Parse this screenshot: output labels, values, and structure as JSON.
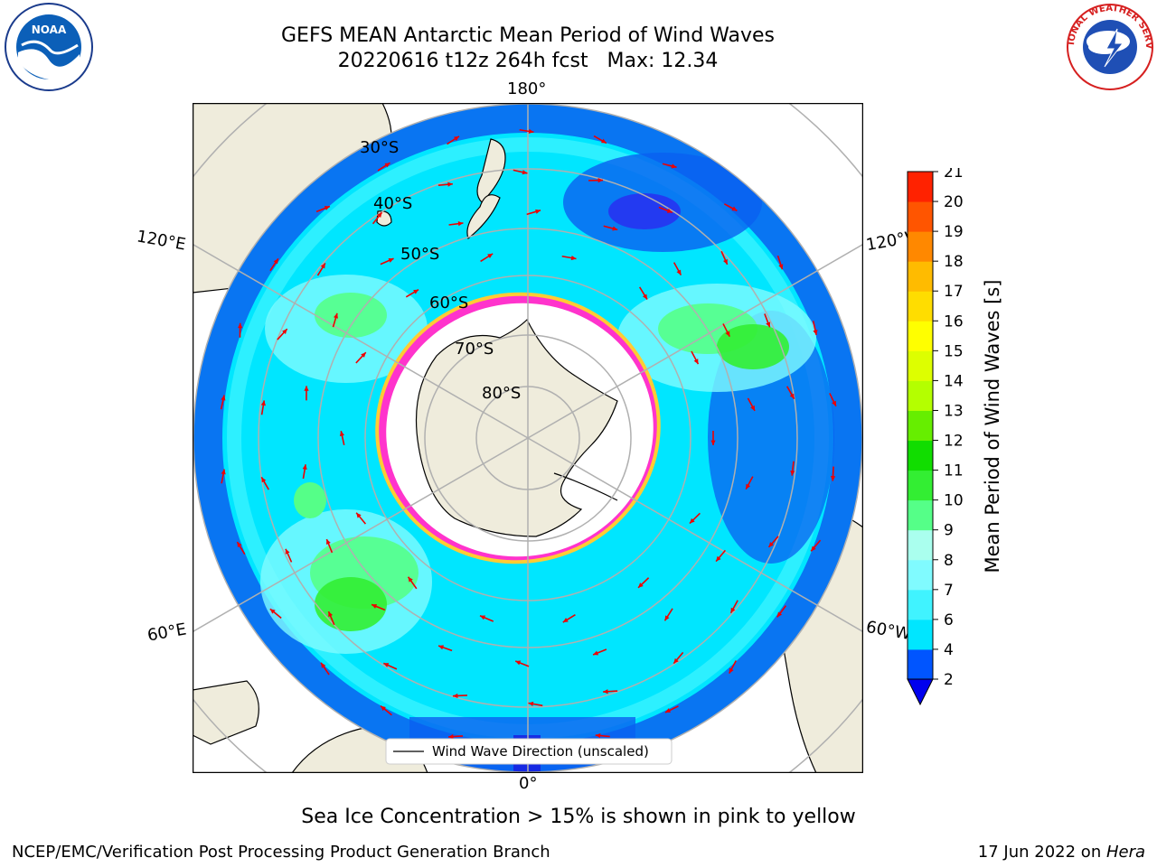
{
  "header": {
    "title": "GEFS MEAN Antarctic Mean Period of Wind Waves",
    "subtitle": "20220616 t12z 264h fcst   Max: 12.34"
  },
  "map": {
    "projection": "south-polar-stereographic",
    "lon_labels": {
      "top": "180°",
      "bottom": "0°",
      "upper_left": "120°E",
      "upper_right": "120°W",
      "lower_left": "60°E",
      "lower_right": "60°W"
    },
    "lat_labels": [
      "30°S",
      "40°S",
      "50°S",
      "60°S",
      "70°S",
      "80°S"
    ],
    "legend_label": "Wind Wave Direction (unscaled)"
  },
  "colorbar": {
    "label": "Mean Period of Wind Waves [s]",
    "ticks": [
      "2",
      "4",
      "6",
      "7",
      "8",
      "9",
      "10",
      "11",
      "12",
      "13",
      "14",
      "15",
      "16",
      "17",
      "18",
      "19",
      "20",
      "21"
    ],
    "colors": [
      "#0055ff",
      "#00e6ff",
      "#40f3ff",
      "#80fbff",
      "#aaffee",
      "#55ff88",
      "#33ee33",
      "#11dd00",
      "#66ee00",
      "#b4ff00",
      "#ddff00",
      "#ffff00",
      "#ffdd00",
      "#ffbb00",
      "#ff8800",
      "#ff5500",
      "#ff2200"
    ],
    "under_color": "#0000ee"
  },
  "colors": {
    "land": "#efecdc",
    "ice_edge": "#ff33cc",
    "arrows": "#ee0000",
    "grid": "#b0b0b0"
  },
  "chart_data": {
    "type": "heatmap",
    "title": "GEFS MEAN Antarctic Mean Period of Wind Waves",
    "subtitle": "20220616 t12z 264h fcst   Max: 12.34",
    "colorbar_label": "Mean Period of Wind Waves [s]",
    "colorbar_range": [
      2,
      21
    ],
    "max_value": 12.34,
    "overlay": "Wind Wave Direction (unscaled)"
  },
  "footer": {
    "note": "Sea Ice Concentration > 15% is shown in pink to yellow",
    "left": "NCEP/EMC/Verification Post Processing Product Generation Branch",
    "right_date": "17 Jun 2022 on ",
    "right_machine": "Hera"
  },
  "logos": {
    "noaa": "NOAA",
    "nws": "NATIONAL WEATHER SERVICE"
  }
}
